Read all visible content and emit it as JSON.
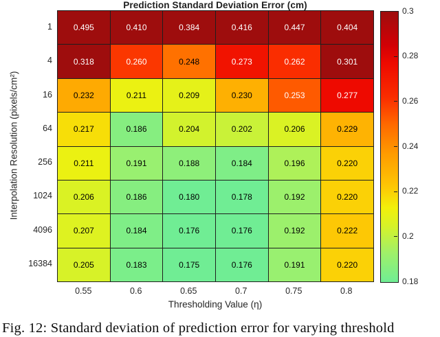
{
  "figure": {
    "caption": "Fig. 12: Standard deviation of prediction error for varying threshold"
  },
  "chart_data": {
    "type": "heatmap",
    "title": "Prediction Standard Deviation Error (cm)",
    "xlabel": "Thresholding Value (η)",
    "ylabel": "Interpolation Resolution (pixels/cm²)",
    "x_categories": [
      "0.55",
      "0.6",
      "0.65",
      "0.7",
      "0.75",
      "0.8"
    ],
    "y_categories": [
      "1",
      "4",
      "16",
      "64",
      "256",
      "1024",
      "4096",
      "16384"
    ],
    "values": [
      [
        0.495,
        0.41,
        0.384,
        0.416,
        0.447,
        0.404
      ],
      [
        0.318,
        0.26,
        0.248,
        0.273,
        0.262,
        0.301
      ],
      [
        0.232,
        0.211,
        0.209,
        0.23,
        0.253,
        0.277
      ],
      [
        0.217,
        0.186,
        0.204,
        0.202,
        0.206,
        0.229
      ],
      [
        0.211,
        0.191,
        0.188,
        0.184,
        0.196,
        0.22
      ],
      [
        0.206,
        0.186,
        0.18,
        0.178,
        0.192,
        0.22
      ],
      [
        0.207,
        0.184,
        0.176,
        0.176,
        0.192,
        0.222
      ],
      [
        0.205,
        0.183,
        0.175,
        0.176,
        0.191,
        0.22
      ]
    ],
    "value_decimals": 3,
    "grid": "cell-borders",
    "legend_position": "right-colorbar",
    "colorbar": {
      "min": 0.18,
      "max": 0.3,
      "tick_labels": [
        "0.3",
        "0.28",
        "0.26",
        "0.24",
        "0.22",
        "0.2",
        "0.18"
      ]
    },
    "colors": {
      "grid_line": "#1e1e1e",
      "cell_text_black": "#000000",
      "cell_text_white": "#ffffff",
      "white_text_threshold": 0.25,
      "colormap_stops": [
        [
          0.18,
          112,
          237,
          148
        ],
        [
          0.193,
          160,
          240,
          105
        ],
        [
          0.205,
          215,
          242,
          40
        ],
        [
          0.213,
          242,
          240,
          10
        ],
        [
          0.222,
          253,
          200,
          5
        ],
        [
          0.237,
          255,
          155,
          0
        ],
        [
          0.25,
          255,
          105,
          0
        ],
        [
          0.262,
          250,
          45,
          0
        ],
        [
          0.277,
          238,
          10,
          0
        ],
        [
          0.285,
          210,
          0,
          5
        ],
        [
          0.3,
          158,
          13,
          13
        ]
      ]
    }
  }
}
